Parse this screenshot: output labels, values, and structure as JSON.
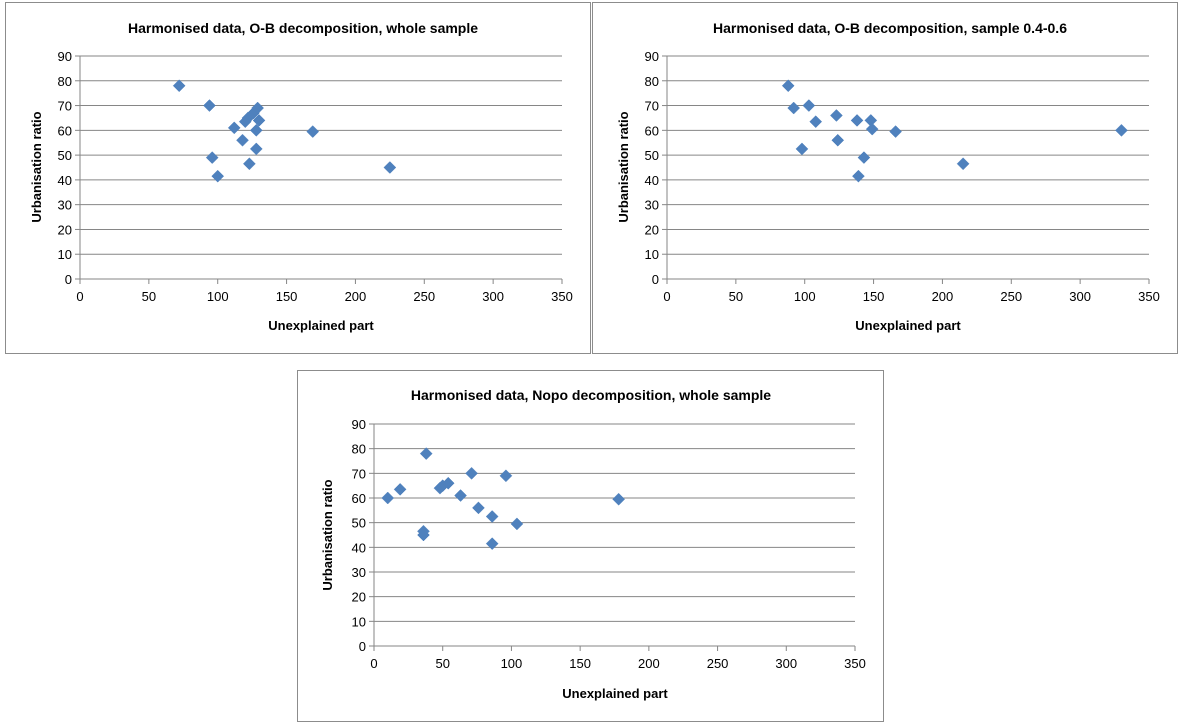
{
  "colors": {
    "marker": "#4f81bd",
    "gridline": "#868686",
    "axis": "#868686",
    "border": "#8c8c8c"
  },
  "chart_data": [
    {
      "type": "scatter",
      "title": "Harmonised data, O-B decomposition, whole sample",
      "xlabel": "Unexplained part",
      "ylabel": "Urbanisation ratio",
      "xlim": [
        0,
        350
      ],
      "ylim": [
        0,
        90
      ],
      "xticks": [
        "0",
        "50",
        "100",
        "150",
        "200",
        "250",
        "300",
        "350"
      ],
      "yticks": [
        "0",
        "10",
        "20",
        "30",
        "40",
        "50",
        "60",
        "70",
        "80",
        "90"
      ],
      "grid": "horizontal",
      "marker": "diamond",
      "points": [
        {
          "x": 72,
          "y": 78
        },
        {
          "x": 94,
          "y": 70
        },
        {
          "x": 96,
          "y": 49
        },
        {
          "x": 100,
          "y": 41.5
        },
        {
          "x": 112,
          "y": 61
        },
        {
          "x": 118,
          "y": 56
        },
        {
          "x": 120,
          "y": 63.5
        },
        {
          "x": 122,
          "y": 65
        },
        {
          "x": 123,
          "y": 46.5
        },
        {
          "x": 126,
          "y": 67
        },
        {
          "x": 128,
          "y": 60
        },
        {
          "x": 128,
          "y": 52.5
        },
        {
          "x": 129,
          "y": 69
        },
        {
          "x": 130,
          "y": 64
        },
        {
          "x": 169,
          "y": 59.5
        },
        {
          "x": 225,
          "y": 45
        }
      ]
    },
    {
      "type": "scatter",
      "title": "Harmonised data, O-B decomposition, sample 0.4-0.6",
      "xlabel": "Unexplained part",
      "ylabel": "Urbanisation ratio",
      "xlim": [
        0,
        350
      ],
      "ylim": [
        0,
        90
      ],
      "xticks": [
        "0",
        "50",
        "100",
        "150",
        "200",
        "250",
        "300",
        "350"
      ],
      "yticks": [
        "0",
        "10",
        "20",
        "30",
        "40",
        "50",
        "60",
        "70",
        "80",
        "90"
      ],
      "grid": "horizontal",
      "marker": "diamond",
      "points": [
        {
          "x": 88,
          "y": 78
        },
        {
          "x": 92,
          "y": 69
        },
        {
          "x": 98,
          "y": 52.5
        },
        {
          "x": 103,
          "y": 70
        },
        {
          "x": 108,
          "y": 63.5
        },
        {
          "x": 123,
          "y": 66
        },
        {
          "x": 124,
          "y": 56
        },
        {
          "x": 138,
          "y": 64
        },
        {
          "x": 139,
          "y": 41.5
        },
        {
          "x": 143,
          "y": 49
        },
        {
          "x": 148,
          "y": 64
        },
        {
          "x": 149,
          "y": 60.5
        },
        {
          "x": 166,
          "y": 59.5
        },
        {
          "x": 215,
          "y": 46.5
        },
        {
          "x": 330,
          "y": 60
        }
      ]
    },
    {
      "type": "scatter",
      "title": "Harmonised data, Nopo decomposition, whole sample",
      "xlabel": "Unexplained part",
      "ylabel": "Urbanisation ratio",
      "xlim": [
        0,
        350
      ],
      "ylim": [
        0,
        90
      ],
      "xticks": [
        "0",
        "50",
        "100",
        "150",
        "200",
        "250",
        "300",
        "350"
      ],
      "yticks": [
        "0",
        "10",
        "20",
        "30",
        "40",
        "50",
        "60",
        "70",
        "80",
        "90"
      ],
      "grid": "horizontal",
      "marker": "diamond",
      "points": [
        {
          "x": 10,
          "y": 60
        },
        {
          "x": 19,
          "y": 63.5
        },
        {
          "x": 36,
          "y": 46.5
        },
        {
          "x": 36,
          "y": 45
        },
        {
          "x": 38,
          "y": 78
        },
        {
          "x": 48,
          "y": 64
        },
        {
          "x": 50,
          "y": 65
        },
        {
          "x": 54,
          "y": 66
        },
        {
          "x": 63,
          "y": 61
        },
        {
          "x": 71,
          "y": 70
        },
        {
          "x": 76,
          "y": 56
        },
        {
          "x": 86,
          "y": 52.5
        },
        {
          "x": 86,
          "y": 41.5
        },
        {
          "x": 96,
          "y": 69
        },
        {
          "x": 104,
          "y": 49.5
        },
        {
          "x": 178,
          "y": 59.5
        }
      ]
    }
  ]
}
